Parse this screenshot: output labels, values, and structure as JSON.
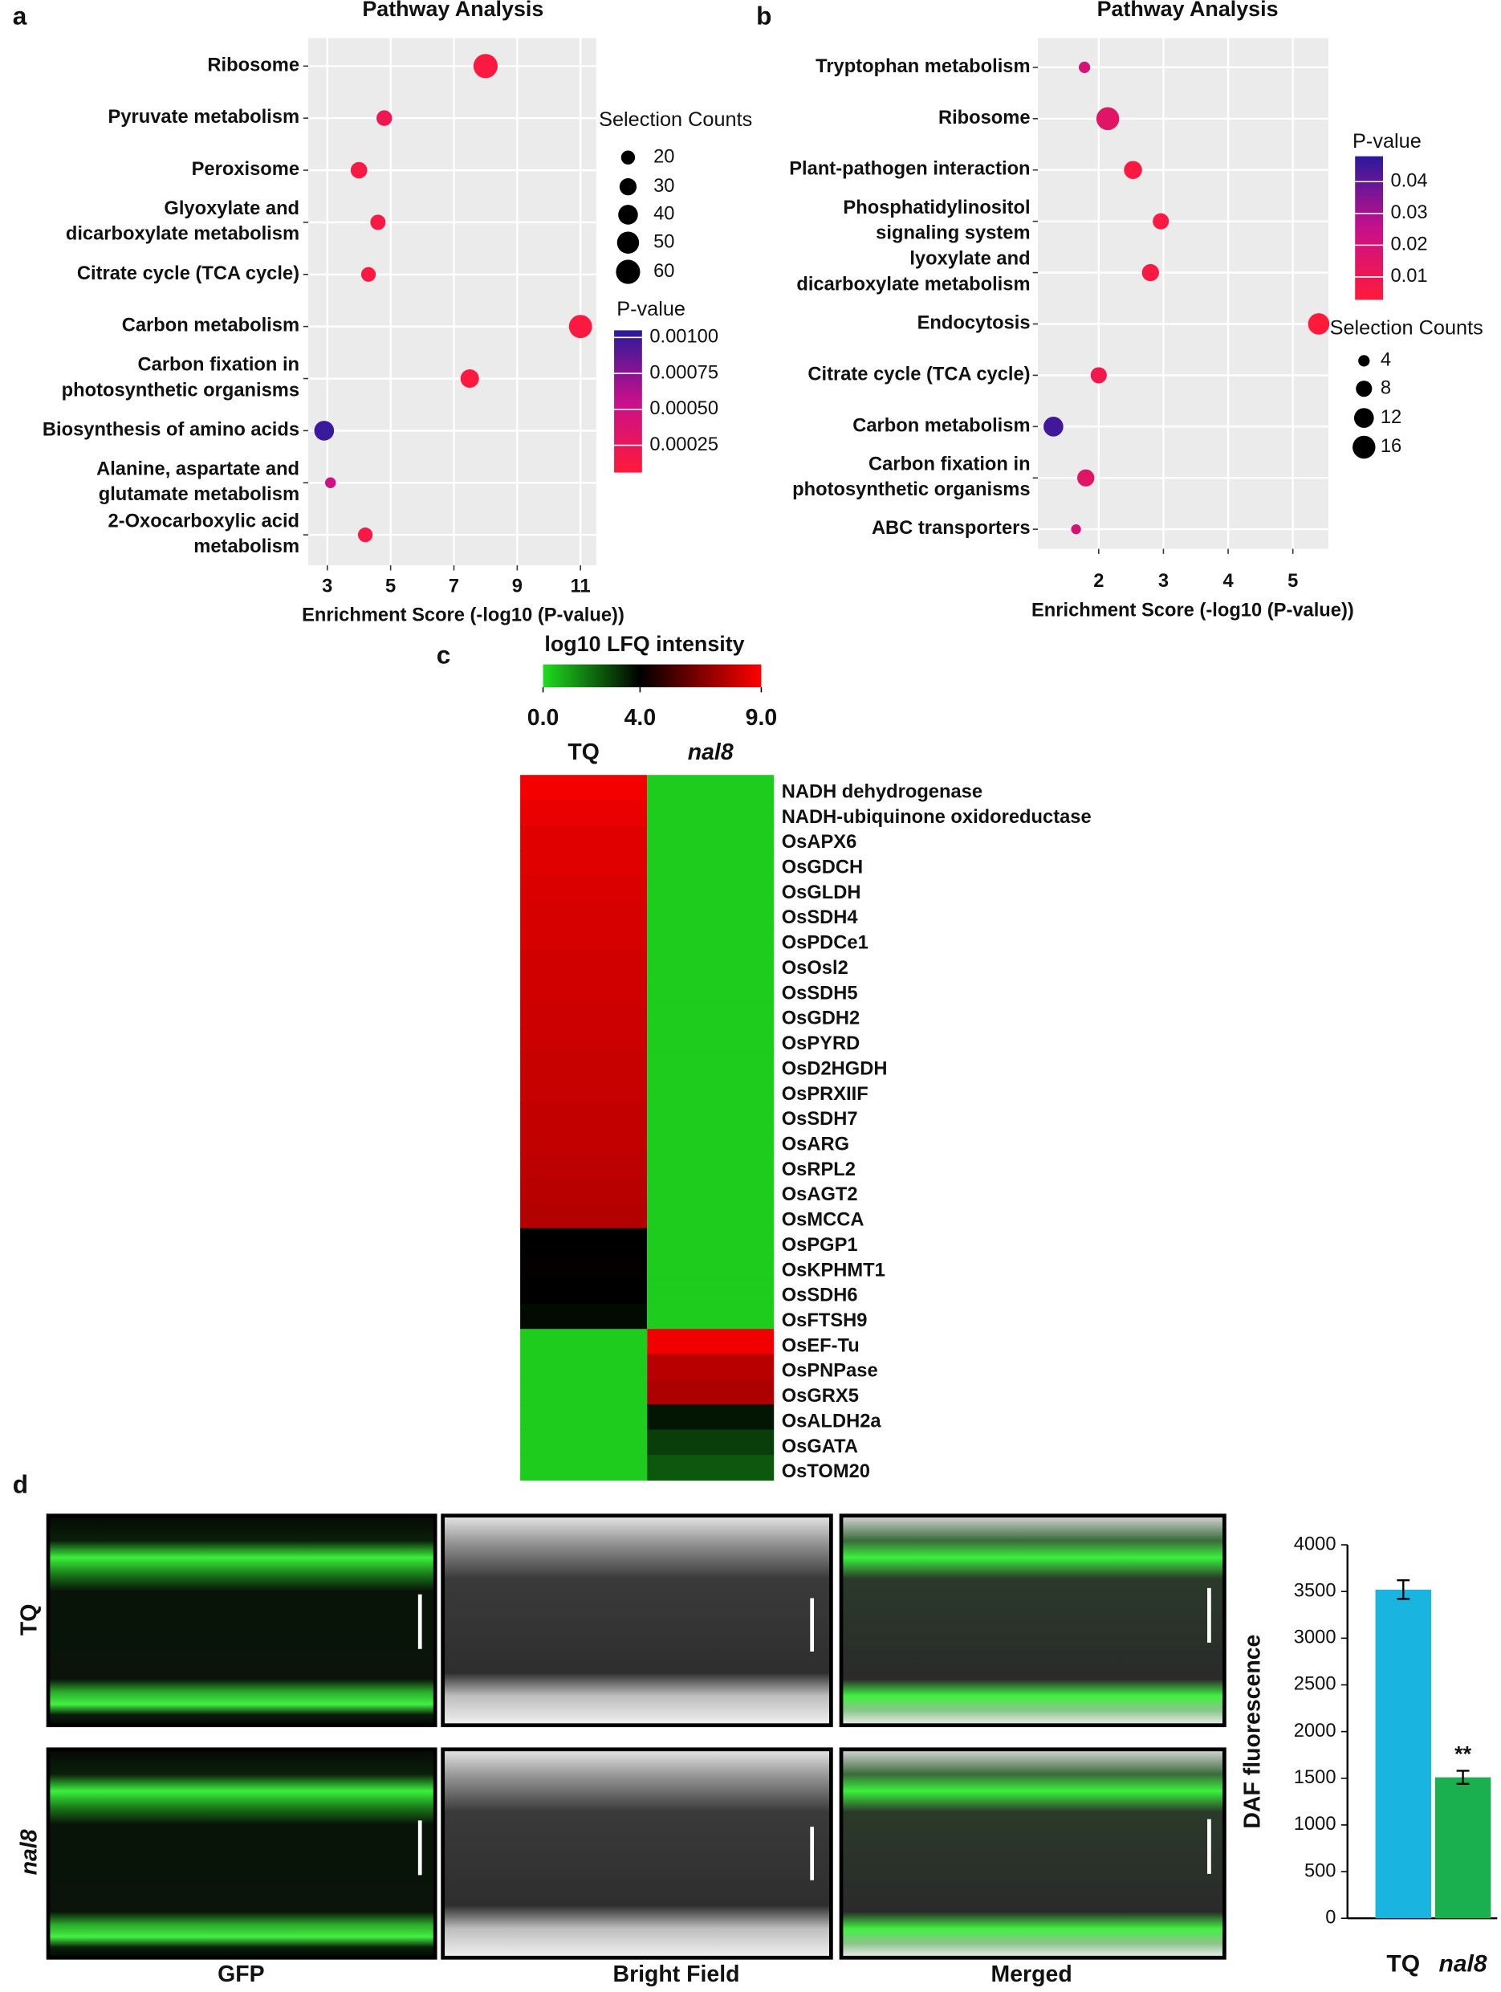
{
  "panel_labels": [
    "a",
    "b",
    "c",
    "d"
  ],
  "images": {
    "columns": [
      "GFP",
      "Bright Field",
      "Merged"
    ],
    "rows": [
      "TQ",
      "nal8"
    ]
  },
  "chart_data": [
    {
      "type": "bubble",
      "title": "Pathway Analysis",
      "xlabel": "Enrichment Score (-log10 (P-value))",
      "categories": [
        [
          "Ribosome"
        ],
        [
          "Pyruvate metabolism"
        ],
        [
          "Peroxisome"
        ],
        [
          "Glyoxylate and",
          "dicarboxylate metabolism"
        ],
        [
          "Citrate cycle (TCA cycle)"
        ],
        [
          "Carbon metabolism"
        ],
        [
          "Carbon fixation in",
          "photosynthetic organisms"
        ],
        [
          "Biosynthesis of amino acids"
        ],
        [
          "Alanine, aspartate and",
          "glutamate metabolism"
        ],
        [
          "2-Oxocarboxylic acid",
          "metabolism"
        ]
      ],
      "values": [
        8.0,
        4.8,
        4.0,
        4.6,
        4.3,
        11.0,
        7.5,
        2.9,
        3.1,
        4.2
      ],
      "sizes": [
        60,
        25,
        28,
        24,
        22,
        55,
        35,
        40,
        12,
        22
      ],
      "pvalues": [
        0.0001,
        0.0002,
        0.00012,
        0.00012,
        0.0001,
        0.0001,
        0.0001,
        0.001,
        0.0005,
        0.00012
      ],
      "xlim": [
        2.4,
        11.5
      ],
      "xticks": [
        3,
        5,
        7,
        9,
        11
      ],
      "grid": true,
      "size_title": "Selection Counts",
      "size_ticks": [
        20,
        30,
        40,
        50,
        60
      ],
      "color_title": "P-value",
      "clim": [
        6e-05,
        0.00105
      ],
      "cticks": [
        {
          "value": 0.001,
          "label": "0.00100"
        },
        {
          "value": 0.00075,
          "label": "0.00075"
        },
        {
          "value": 0.0005,
          "label": "0.00050"
        },
        {
          "value": 0.00025,
          "label": "0.00025"
        }
      ],
      "colors": [
        "#ff1a3a",
        "#c8108c",
        "#2a1a9c"
      ]
    },
    {
      "type": "bubble",
      "title": "Pathway Analysis",
      "xlabel": "Enrichment Score (-log10 (P-value))",
      "categories": [
        [
          "Tryptophan metabolism"
        ],
        [
          "Ribosome"
        ],
        [
          "Plant-pathogen interaction"
        ],
        [
          "Phosphatidylinositol",
          "signaling system"
        ],
        [
          "lyoxylate and",
          "dicarboxylate metabolism"
        ],
        [
          "Endocytosis"
        ],
        [
          "Citrate cycle (TCA cycle)"
        ],
        [
          "Carbon metabolism"
        ],
        [
          "Carbon fixation in",
          "photosynthetic organisms"
        ],
        [
          "ABC transporters"
        ]
      ],
      "values": [
        1.78,
        2.14,
        2.53,
        2.96,
        2.8,
        5.4,
        2.0,
        1.3,
        1.8,
        1.65
      ],
      "sizes": [
        4,
        16,
        10,
        8,
        9,
        14,
        8,
        12,
        9,
        3
      ],
      "pvalues": [
        0.02,
        0.015,
        0.005,
        0.005,
        0.005,
        0.002,
        0.008,
        0.045,
        0.015,
        0.02
      ],
      "xlim": [
        1.06,
        5.55
      ],
      "xticks": [
        2,
        3,
        4,
        5
      ],
      "grid": true,
      "size_title": "Selection Counts",
      "size_ticks": [
        4,
        8,
        12,
        16
      ],
      "color_title": "P-value",
      "clim": [
        0.0028,
        0.048
      ],
      "cticks": [
        0.04,
        0.03,
        0.02,
        0.01
      ],
      "colors": [
        "#ff1a3a",
        "#c8108c",
        "#2a1a9c"
      ]
    },
    {
      "type": "heatmap",
      "color_title": "log10 LFQ intensity",
      "cticks": [
        {
          "value": 0,
          "label": "0.0"
        },
        {
          "value": 4,
          "label": "4.0"
        },
        {
          "value": 9,
          "label": "9.0"
        }
      ],
      "colors": [
        "#1fdc1f",
        "#000000",
        "#ff0000"
      ],
      "rows": [
        "NADH dehydrogenase",
        "NADH-ubiquinone oxidoreductase",
        "OsAPX6",
        "OsGDCH",
        "OsGLDH",
        "OsSDH4",
        "OsPDCe1",
        "OsOsl2",
        "OsSDH5",
        "OsGDH2",
        "OsPYRD",
        "OsD2HGDH",
        "OsPRXIIF",
        "OsSDH7",
        "OsARG",
        "OsRPL2",
        "OsAGT2",
        "OsMCCA",
        "OsPGP1",
        "OsKPHMT1",
        "OsSDH6",
        "OsFTSH9",
        "OsEF-Tu",
        "OsPNPase",
        "OsGRX5",
        "OsALDH2a",
        "OsGATA",
        "OsTOM20"
      ],
      "series": [
        {
          "name": "TQ",
          "values": [
            8.8,
            8.6,
            8.4,
            8.4,
            8.3,
            8.2,
            8.2,
            8.1,
            8.1,
            8.0,
            8.0,
            7.9,
            7.9,
            7.8,
            7.8,
            7.7,
            7.6,
            7.5,
            4.0,
            4.1,
            4.0,
            3.8,
            0.3,
            0.3,
            0.3,
            0.3,
            0.3,
            0.3
          ]
        },
        {
          "name": "nal8",
          "values": [
            0.3,
            0.3,
            0.3,
            0.3,
            0.3,
            0.3,
            0.3,
            0.3,
            0.3,
            0.3,
            0.3,
            0.3,
            0.3,
            0.3,
            0.3,
            0.3,
            0.3,
            0.3,
            0.3,
            0.3,
            0.3,
            0.3,
            8.7,
            7.6,
            7.4,
            3.6,
            2.9,
            2.4
          ]
        }
      ]
    },
    {
      "type": "bar",
      "ylabel": "DAF fluorescence",
      "categories": [
        "TQ",
        "nal8"
      ],
      "values": [
        3520,
        1510
      ],
      "errors": [
        100,
        70
      ],
      "colors": [
        "#1ab4e0",
        "#1ab050"
      ],
      "ylim": [
        0,
        4000
      ],
      "yticks": [
        0,
        500,
        1000,
        1500,
        2000,
        2500,
        3000,
        3500,
        4000
      ],
      "annotation": "**"
    }
  ]
}
